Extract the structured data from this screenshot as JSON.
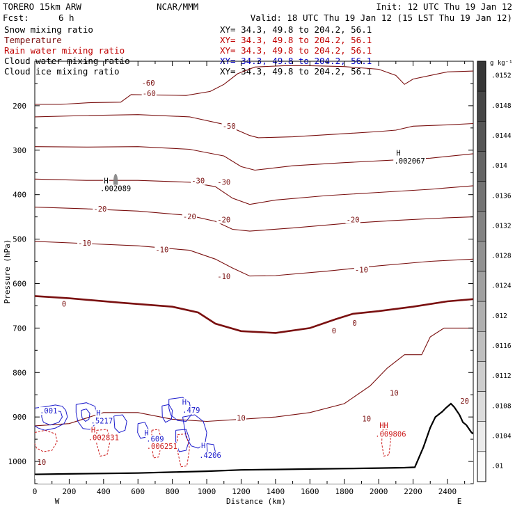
{
  "header": {
    "model": "TORERO  15km ARW",
    "center": "NCAR/MMM",
    "init": "Init: 12 UTC Thu 19 Jan 12",
    "fcst_label": "Fcst:",
    "fcst_value": "6 h",
    "valid": "Valid: 18 UTC Thu 19 Jan 12 (15 LST Thu 19 Jan 12)"
  },
  "fields": [
    {
      "label": "Snow mixing ratio",
      "xy": "XY=  34.3, 49.8 to 204.2, 56.1",
      "color": "#000000",
      "xy_color": "#000000"
    },
    {
      "label": "Temperature",
      "xy": "XY=  34.3, 49.8 to 204.2, 56.1",
      "color": "#7a1010",
      "xy_color": "#c00000"
    },
    {
      "label": "Rain water mixing ratio",
      "xy": "XY=  34.3, 49.8 to 204.2, 56.1",
      "color": "#c00000",
      "xy_color": "#c00000"
    },
    {
      "label": "Cloud water mixing ratio",
      "xy": "XY=  34.3, 49.8 to 204.2, 56.1",
      "color": "#000000",
      "xy_color": "#0000c0"
    },
    {
      "label": "Cloud ice mixing ratio",
      "xy": "XY=  34.3, 49.8 to 204.2, 56.1",
      "color": "#000000",
      "xy_color": "#000000"
    }
  ],
  "colors": {
    "temperature": "#7a1010",
    "cloud_water": "#1a1acc",
    "rain_water": "#cc1a1a",
    "terrain": "#000000"
  },
  "chart_data": {
    "type": "cross-section contour",
    "xlabel": "Distance (km)",
    "ylabel": "Pressure (hPa)",
    "x_ticks": [
      0,
      200,
      400,
      600,
      800,
      1000,
      1200,
      1400,
      1600,
      1800,
      2000,
      2200,
      2400
    ],
    "y_ticks": [
      200,
      300,
      400,
      500,
      600,
      700,
      800,
      900,
      1000
    ],
    "xlim": [
      0,
      2550
    ],
    "ylim": [
      1050,
      100
    ],
    "left_end_label": "W",
    "right_end_label": "E",
    "temperature_isotherms": [
      {
        "value": -60,
        "bold": false,
        "points": [
          [
            0,
            197
          ],
          [
            150,
            197
          ],
          [
            330,
            193
          ],
          [
            500,
            192
          ],
          [
            560,
            175
          ],
          [
            720,
            176
          ],
          [
            880,
            177
          ],
          [
            1020,
            168
          ],
          [
            1100,
            152
          ],
          [
            1180,
            128
          ],
          [
            1280,
            113
          ],
          [
            1450,
            110
          ],
          [
            1600,
            110
          ],
          [
            1800,
            112
          ],
          [
            2000,
            118
          ],
          [
            2100,
            132
          ],
          [
            2150,
            152
          ],
          [
            2200,
            140
          ],
          [
            2300,
            132
          ],
          [
            2400,
            124
          ],
          [
            2550,
            122
          ]
        ]
      },
      {
        "value": -50,
        "bold": false,
        "points": [
          [
            0,
            225
          ],
          [
            300,
            222
          ],
          [
            600,
            220
          ],
          [
            900,
            225
          ],
          [
            1100,
            242
          ],
          [
            1250,
            267
          ],
          [
            1300,
            272
          ],
          [
            1500,
            270
          ],
          [
            1800,
            263
          ],
          [
            2000,
            258
          ],
          [
            2100,
            255
          ],
          [
            2200,
            246
          ],
          [
            2400,
            243
          ],
          [
            2550,
            240
          ]
        ]
      },
      {
        "value": -40,
        "bold": false,
        "points": [
          [
            0,
            292
          ],
          [
            300,
            293
          ],
          [
            600,
            292
          ],
          [
            900,
            298
          ],
          [
            1100,
            313
          ],
          [
            1200,
            337
          ],
          [
            1280,
            345
          ],
          [
            1500,
            335
          ],
          [
            1800,
            328
          ],
          [
            2100,
            322
          ],
          [
            2300,
            318
          ],
          [
            2550,
            308
          ]
        ]
      },
      {
        "value": -30,
        "bold": false,
        "points": [
          [
            0,
            365
          ],
          [
            300,
            368
          ],
          [
            600,
            368
          ],
          [
            900,
            372
          ],
          [
            1050,
            382
          ],
          [
            1150,
            408
          ],
          [
            1250,
            422
          ],
          [
            1400,
            412
          ],
          [
            1700,
            402
          ],
          [
            2000,
            395
          ],
          [
            2300,
            388
          ],
          [
            2550,
            380
          ]
        ]
      },
      {
        "value": -20,
        "bold": false,
        "points": [
          [
            0,
            428
          ],
          [
            300,
            432
          ],
          [
            600,
            437
          ],
          [
            900,
            447
          ],
          [
            1050,
            460
          ],
          [
            1150,
            478
          ],
          [
            1250,
            482
          ],
          [
            1500,
            475
          ],
          [
            1800,
            465
          ],
          [
            2100,
            458
          ],
          [
            2400,
            452
          ],
          [
            2550,
            450
          ]
        ]
      },
      {
        "value": -10,
        "bold": false,
        "points": [
          [
            0,
            505
          ],
          [
            300,
            510
          ],
          [
            600,
            515
          ],
          [
            900,
            525
          ],
          [
            1050,
            545
          ],
          [
            1150,
            565
          ],
          [
            1250,
            583
          ],
          [
            1400,
            582
          ],
          [
            1700,
            572
          ],
          [
            2000,
            560
          ],
          [
            2300,
            550
          ],
          [
            2550,
            545
          ]
        ]
      },
      {
        "value": 0,
        "bold": true,
        "points": [
          [
            0,
            628
          ],
          [
            200,
            633
          ],
          [
            500,
            643
          ],
          [
            800,
            652
          ],
          [
            950,
            665
          ],
          [
            1050,
            690
          ],
          [
            1200,
            707
          ],
          [
            1400,
            711
          ],
          [
            1600,
            700
          ],
          [
            1750,
            680
          ],
          [
            1850,
            668
          ],
          [
            2000,
            662
          ],
          [
            2200,
            652
          ],
          [
            2400,
            640
          ],
          [
            2550,
            635
          ]
        ]
      },
      {
        "value": 10,
        "bold": false,
        "points": [
          [
            0,
            920
          ],
          [
            200,
            915
          ],
          [
            400,
            890
          ],
          [
            600,
            890
          ],
          [
            800,
            905
          ],
          [
            1000,
            910
          ],
          [
            1200,
            905
          ],
          [
            1400,
            900
          ],
          [
            1600,
            890
          ],
          [
            1800,
            870
          ],
          [
            1950,
            830
          ],
          [
            2050,
            790
          ],
          [
            2150,
            760
          ],
          [
            2250,
            760
          ],
          [
            2300,
            720
          ],
          [
            2380,
            700
          ],
          [
            2550,
            700
          ]
        ]
      }
    ],
    "terrain_profile": [
      [
        0,
        1029
      ],
      [
        200,
        1028
      ],
      [
        400,
        1027
      ],
      [
        600,
        1026
      ],
      [
        800,
        1024
      ],
      [
        1000,
        1022
      ],
      [
        1200,
        1019
      ],
      [
        1400,
        1018
      ],
      [
        1600,
        1017
      ],
      [
        1800,
        1016
      ],
      [
        2000,
        1015
      ],
      [
        2150,
        1014
      ],
      [
        2210,
        1013
      ],
      [
        2260,
        968
      ],
      [
        2300,
        924
      ],
      [
        2330,
        900
      ],
      [
        2370,
        888
      ],
      [
        2390,
        880
      ],
      [
        2420,
        870
      ],
      [
        2440,
        878
      ],
      [
        2470,
        895
      ],
      [
        2490,
        912
      ],
      [
        2510,
        918
      ],
      [
        2540,
        935
      ],
      [
        2550,
        938
      ]
    ],
    "annotations": [
      {
        "text": "-60",
        "x": 660,
        "y": 155,
        "color": "#7a1010"
      },
      {
        "text": "-60",
        "x": 665,
        "y": 178,
        "color": "#7a1010"
      },
      {
        "text": "-50",
        "x": 1130,
        "y": 252,
        "color": "#7a1010"
      },
      {
        "text": "-30",
        "x": 950,
        "y": 375,
        "color": "#7a1010"
      },
      {
        "text": "-30",
        "x": 1100,
        "y": 378,
        "color": "#7a1010"
      },
      {
        "text": "-20",
        "x": 380,
        "y": 438,
        "color": "#7a1010"
      },
      {
        "text": "-20",
        "x": 900,
        "y": 455,
        "color": "#7a1010"
      },
      {
        "text": "-20",
        "x": 1100,
        "y": 462,
        "color": "#7a1010"
      },
      {
        "text": "-20",
        "x": 1850,
        "y": 462,
        "color": "#7a1010"
      },
      {
        "text": "-10",
        "x": 290,
        "y": 515,
        "color": "#7a1010"
      },
      {
        "text": "-10",
        "x": 740,
        "y": 530,
        "color": "#7a1010"
      },
      {
        "text": "-10",
        "x": 1100,
        "y": 590,
        "color": "#7a1010"
      },
      {
        "text": "-10",
        "x": 1900,
        "y": 575,
        "color": "#7a1010"
      },
      {
        "text": "0",
        "x": 170,
        "y": 652,
        "color": "#7a1010"
      },
      {
        "text": "0",
        "x": 1740,
        "y": 712,
        "color": "#7a1010"
      },
      {
        "text": "0",
        "x": 1860,
        "y": 695,
        "color": "#7a1010"
      },
      {
        "text": "10",
        "x": 40,
        "y": 1008,
        "color": "#7a1010"
      },
      {
        "text": "10",
        "x": 1200,
        "y": 908,
        "color": "#7a1010"
      },
      {
        "text": "10",
        "x": 1930,
        "y": 910,
        "color": "#7a1010"
      },
      {
        "text": "10",
        "x": 2090,
        "y": 852,
        "color": "#7a1010"
      },
      {
        "text": "20",
        "x": 2500,
        "y": 870,
        "color": "#7a1010"
      },
      {
        "text": "H",
        "x": 415,
        "y": 375,
        "color": "#000000"
      },
      {
        "text": ".002089",
        "x": 470,
        "y": 392,
        "color": "#000000"
      },
      {
        "text": "H",
        "x": 2115,
        "y": 312,
        "color": "#000000"
      },
      {
        "text": ".002067",
        "x": 2180,
        "y": 330,
        "color": "#000000"
      },
      {
        "text": ".001",
        "x": 80,
        "y": 892,
        "color": "#1a1acc"
      },
      {
        "text": "H",
        "x": 370,
        "y": 897,
        "color": "#1a1acc"
      },
      {
        "text": ".5217",
        "x": 390,
        "y": 915,
        "color": "#1a1acc"
      },
      {
        "text": "H",
        "x": 340,
        "y": 935,
        "color": "#cc1a1a"
      },
      {
        "text": ".002831",
        "x": 400,
        "y": 952,
        "color": "#cc1a1a"
      },
      {
        "text": "H",
        "x": 650,
        "y": 942,
        "color": "#1a1acc"
      },
      {
        "text": ".609",
        "x": 700,
        "y": 955,
        "color": "#1a1acc"
      },
      {
        "text": ".006251",
        "x": 740,
        "y": 972,
        "color": "#cc1a1a"
      },
      {
        "text": "H",
        "x": 870,
        "y": 872,
        "color": "#1a1acc"
      },
      {
        "text": ".479",
        "x": 910,
        "y": 890,
        "color": "#1a1acc"
      },
      {
        "text": "H",
        "x": 980,
        "y": 970,
        "color": "#1a1acc"
      },
      {
        "text": ".4206",
        "x": 1020,
        "y": 992,
        "color": "#1a1acc"
      },
      {
        "text": "HH",
        "x": 2030,
        "y": 925,
        "color": "#cc1a1a"
      },
      {
        "text": ".009806",
        "x": 2070,
        "y": 944,
        "color": "#cc1a1a"
      }
    ],
    "shading_scale": {
      "unit": "g kg⁻¹",
      "labels": [
        ".0152",
        ".0148",
        ".0144",
        ".014",
        ".0136",
        ".0132",
        ".0128",
        ".0124",
        ".012",
        ".0116",
        ".0112",
        ".0108",
        ".0104",
        ".01"
      ]
    }
  }
}
